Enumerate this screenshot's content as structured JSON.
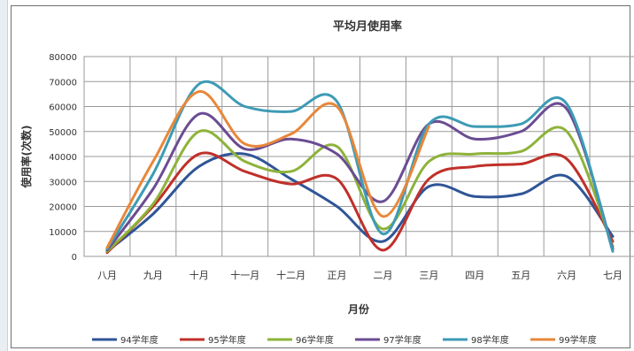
{
  "chart_data": {
    "type": "line",
    "title": "平均月使用率",
    "xlabel": "月份",
    "ylabel": "使用率(次数)",
    "categories": [
      "八月",
      "九月",
      "十月",
      "十一月",
      "十二月",
      "正月",
      "二月",
      "三月",
      "四月",
      "五月",
      "六月",
      "七月"
    ],
    "ylim": [
      0,
      80000
    ],
    "yticks": [
      "0",
      "10000",
      "20000",
      "30000",
      "40000",
      "50000",
      "60000",
      "70000",
      "80000"
    ],
    "grid": true,
    "legend_position": "bottom",
    "series": [
      {
        "name": "94学年度",
        "color": "#2f5597",
        "values": [
          2000,
          17000,
          36000,
          41000,
          31000,
          20000,
          6000,
          28000,
          24000,
          25000,
          32000,
          8000
        ]
      },
      {
        "name": "95学年度",
        "color": "#c0302a",
        "values": [
          1500,
          20000,
          41000,
          34000,
          29000,
          31000,
          2500,
          31000,
          36000,
          37000,
          39000,
          6000
        ]
      },
      {
        "name": "96学年度",
        "color": "#8db33a",
        "values": [
          2000,
          21000,
          50000,
          38000,
          34000,
          44000,
          11000,
          38000,
          41000,
          42000,
          50000,
          4000
        ]
      },
      {
        "name": "97学年度",
        "color": "#6a4c93",
        "values": [
          2500,
          27000,
          57000,
          43000,
          47000,
          41000,
          22000,
          53000,
          47000,
          50000,
          59000,
          3000
        ]
      },
      {
        "name": "98学年度",
        "color": "#3d9bb5",
        "values": [
          3000,
          33000,
          69000,
          60000,
          58000,
          62000,
          9000,
          53000,
          52000,
          53000,
          61000,
          2000
        ]
      },
      {
        "name": "99学年度",
        "color": "#e8873a",
        "values": [
          3500,
          38000,
          66000,
          45000,
          49000,
          60000,
          16000,
          52000,
          null,
          null,
          null,
          null
        ]
      }
    ]
  }
}
